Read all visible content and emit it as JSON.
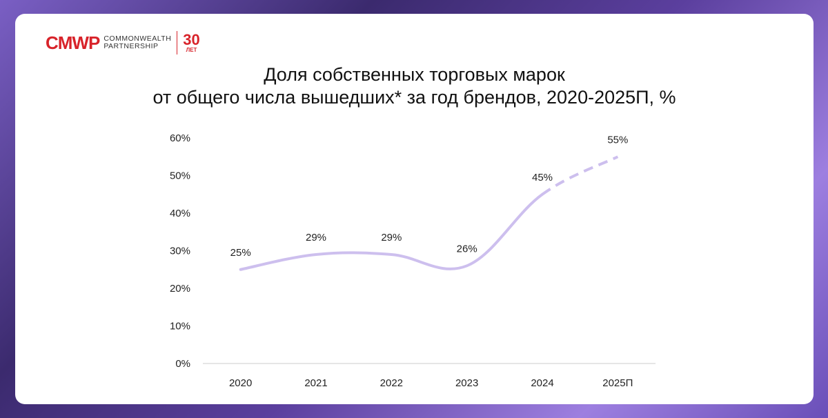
{
  "logo": {
    "mark": "CMWP",
    "line1": "COMMONWEALTH",
    "line2": "PARTNERSHIP",
    "years": "30",
    "years_label": "ЛЕТ"
  },
  "colors": {
    "line": "#cdbfee",
    "axis": "#cccccc",
    "brand": "#d8232a"
  },
  "chart_data": {
    "type": "line",
    "title_line1": "Доля собственных торговых марок",
    "title_line2": "от общего числа вышедших* за год брендов, 2020-2025П, %",
    "categories": [
      "2020",
      "2021",
      "2022",
      "2023",
      "2024",
      "2025П"
    ],
    "values": [
      25,
      29,
      29,
      26,
      45,
      55
    ],
    "data_labels": [
      "25%",
      "29%",
      "29%",
      "26%",
      "45%",
      "55%"
    ],
    "forecast_from_index": 4,
    "ylim": [
      0,
      60
    ],
    "yticks": [
      0,
      10,
      20,
      30,
      40,
      50,
      60
    ],
    "ytick_labels": [
      "0%",
      "10%",
      "20%",
      "30%",
      "40%",
      "50%",
      "60%"
    ],
    "xlabel": "",
    "ylabel": "",
    "grid": false,
    "legend": "none"
  }
}
